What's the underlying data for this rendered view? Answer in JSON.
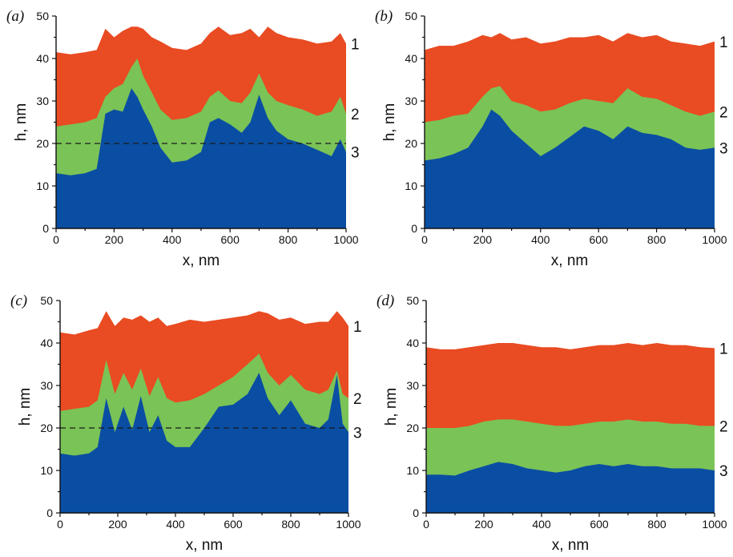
{
  "colors": {
    "layer_1": "#e94b22",
    "layer_2": "#7ac356",
    "layer_3": "#0a4ea3",
    "axis": "#111111"
  },
  "chart_data": [
    {
      "type": "area",
      "panel_label": "(a)",
      "xlabel": "x, nm",
      "ylabel": "h, nm",
      "xlim": [
        0,
        1000
      ],
      "ylim": [
        0,
        50
      ],
      "x_ticks": [
        "0",
        "200",
        "400",
        "600",
        "800",
        "1000"
      ],
      "y_ticks": [
        "0",
        "10",
        "20",
        "30",
        "40",
        "50"
      ],
      "reference_line_y": 20,
      "x": [
        0,
        50,
        100,
        140,
        170,
        200,
        230,
        260,
        280,
        300,
        330,
        360,
        400,
        450,
        500,
        530,
        560,
        600,
        640,
        670,
        700,
        730,
        760,
        800,
        850,
        900,
        950,
        980,
        1000
      ],
      "series": [
        {
          "name": "1",
          "values": [
            41.5,
            41,
            41.5,
            42,
            47,
            45,
            46.5,
            47.5,
            47.5,
            47,
            45,
            44,
            42.5,
            42,
            43.5,
            46,
            47.5,
            45.5,
            46,
            47,
            45,
            47.5,
            46,
            45,
            44.5,
            43.5,
            44,
            46,
            43.5
          ]
        },
        {
          "name": "2",
          "values": [
            24,
            24.5,
            25,
            26,
            31,
            33,
            34,
            38,
            40,
            36,
            32,
            28,
            25.5,
            26,
            27.5,
            31,
            32.5,
            30,
            29.5,
            32,
            36.5,
            32,
            30,
            29,
            28,
            26.5,
            27.5,
            31,
            27
          ]
        },
        {
          "name": "3",
          "values": [
            13,
            12.5,
            13,
            14,
            27,
            28,
            27.5,
            33,
            31,
            28,
            24,
            19,
            15.5,
            16,
            18,
            25,
            26,
            24.5,
            22.5,
            25,
            31.5,
            26,
            23,
            21,
            20,
            18.5,
            17,
            21,
            18
          ]
        }
      ]
    },
    {
      "type": "area",
      "panel_label": "(b)",
      "xlabel": "x, nm",
      "ylabel": "h, nm",
      "xlim": [
        0,
        1000
      ],
      "ylim": [
        0,
        50
      ],
      "x_ticks": [
        "0",
        "200",
        "400",
        "600",
        "800",
        "1000"
      ],
      "y_ticks": [
        "0",
        "10",
        "20",
        "30",
        "40",
        "50"
      ],
      "x": [
        0,
        50,
        100,
        150,
        200,
        230,
        260,
        300,
        350,
        400,
        450,
        500,
        550,
        600,
        650,
        700,
        750,
        800,
        850,
        900,
        950,
        1000
      ],
      "series": [
        {
          "name": "1",
          "values": [
            42,
            43,
            43,
            44,
            45.5,
            45,
            46,
            44.5,
            45,
            43.5,
            44,
            45,
            45,
            45.5,
            44,
            46,
            45,
            45.5,
            44,
            43.5,
            43,
            44
          ]
        },
        {
          "name": "2",
          "values": [
            25,
            25.5,
            26.5,
            27,
            31,
            33,
            33.5,
            30,
            29,
            27.5,
            28,
            29.5,
            30.5,
            30,
            29.5,
            33,
            31,
            30.5,
            29,
            27.5,
            26.5,
            27.5
          ]
        },
        {
          "name": "3",
          "values": [
            16,
            16.5,
            17.5,
            19,
            24,
            28,
            26.5,
            23,
            20,
            17,
            19,
            21.5,
            24,
            23,
            21,
            24,
            22.5,
            22,
            21,
            19,
            18.5,
            19
          ]
        }
      ]
    },
    {
      "type": "area",
      "panel_label": "(c)",
      "xlabel": "x, nm",
      "ylabel": "h, nm",
      "xlim": [
        0,
        1000
      ],
      "ylim": [
        0,
        50
      ],
      "x_ticks": [
        "0",
        "200",
        "400",
        "600",
        "800",
        "1000"
      ],
      "y_ticks": [
        "0",
        "10",
        "20",
        "30",
        "40",
        "50"
      ],
      "reference_line_y": 20,
      "x": [
        0,
        50,
        100,
        130,
        160,
        190,
        220,
        250,
        280,
        310,
        340,
        370,
        400,
        450,
        500,
        550,
        600,
        650,
        690,
        720,
        760,
        800,
        850,
        900,
        930,
        960,
        980,
        1000
      ],
      "series": [
        {
          "name": "1",
          "values": [
            42.5,
            42,
            43,
            43.5,
            47.5,
            44,
            46,
            45.5,
            46.5,
            45,
            46,
            44,
            44.5,
            45.5,
            45,
            45.5,
            46,
            46.5,
            47.5,
            47,
            45.5,
            46,
            44.5,
            45,
            45,
            47.5,
            46,
            44
          ]
        },
        {
          "name": "2",
          "values": [
            24,
            24.5,
            25,
            26.5,
            36,
            28,
            33,
            29,
            34,
            27.5,
            32,
            27,
            26,
            26.5,
            28,
            30,
            32,
            35,
            37.5,
            33,
            30,
            32.5,
            29,
            28,
            29,
            33.5,
            28,
            27
          ]
        },
        {
          "name": "3",
          "values": [
            14,
            13.5,
            14,
            15.5,
            27,
            19,
            25,
            19.5,
            27.5,
            19,
            23,
            17,
            15.5,
            15.5,
            20,
            25,
            25.5,
            28,
            33,
            27,
            23,
            26.5,
            21,
            20,
            22,
            32.5,
            21,
            19
          ]
        }
      ]
    },
    {
      "type": "area",
      "panel_label": "(d)",
      "xlabel": "x, nm",
      "ylabel": "h, nm",
      "xlim": [
        0,
        1000
      ],
      "ylim": [
        0,
        50
      ],
      "x_ticks": [
        "0",
        "200",
        "400",
        "600",
        "800",
        "1000"
      ],
      "y_ticks": [
        "0",
        "10",
        "20",
        "30",
        "40",
        "50"
      ],
      "x": [
        0,
        50,
        100,
        150,
        200,
        250,
        300,
        350,
        400,
        450,
        500,
        550,
        600,
        650,
        700,
        750,
        800,
        850,
        900,
        950,
        1000
      ],
      "series": [
        {
          "name": "1",
          "values": [
            39,
            38.5,
            38.5,
            39,
            39.5,
            40,
            40,
            39.5,
            39,
            39,
            38.5,
            39,
            39.5,
            39.5,
            40,
            39.5,
            40,
            39.5,
            39.5,
            39,
            38.8
          ]
        },
        {
          "name": "2",
          "values": [
            20,
            20,
            20,
            20.5,
            21.5,
            22,
            22,
            21.5,
            21,
            20.5,
            20.5,
            21,
            21.5,
            21.5,
            22,
            21.5,
            21.5,
            21,
            21,
            20.5,
            20.5
          ]
        },
        {
          "name": "3",
          "values": [
            9,
            9,
            8.8,
            10,
            11,
            12,
            11.5,
            10.5,
            10,
            9.5,
            10,
            11,
            11.5,
            11,
            11.5,
            11,
            11,
            10.5,
            10.5,
            10.5,
            10
          ]
        }
      ]
    }
  ]
}
